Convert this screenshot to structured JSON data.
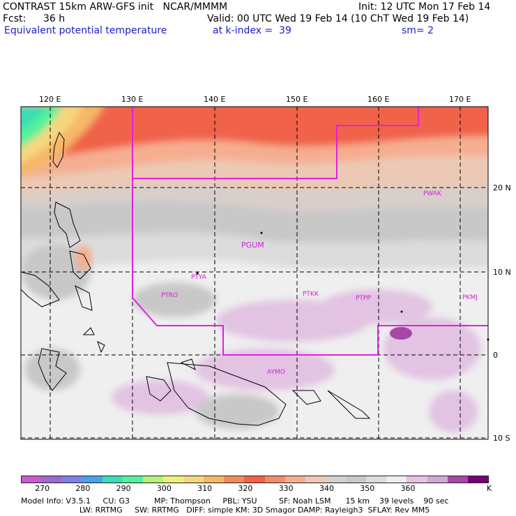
{
  "header": {
    "line1_left": "CONTRAST 15km ARW-GFS init   NCAR/MMMM",
    "init": "Init: 12 UTC Mon 17 Feb 14",
    "fcst_label": "Fcst:",
    "fcst_value": "36 h",
    "valid": "Valid: 00 UTC Wed 19 Feb 14 (10 ChT Wed 19 Feb 14)",
    "field": "Equivalent potential temperature",
    "level": "at k-index =  39",
    "smoothing": "sm= 2"
  },
  "map": {
    "lon_labels": [
      "120 E",
      "130 E",
      "140 E",
      "150 E",
      "160 E",
      "170 E"
    ],
    "lat_labels": [
      "20 N",
      "10 N",
      "0",
      "10 S"
    ],
    "stations": [
      "PWAK",
      "PGUM",
      "PTYA",
      "PTRO",
      "PTKK",
      "PTPP",
      "PKMJ",
      "AYMO"
    ]
  },
  "colorbar": {
    "unit": "K",
    "ticks": [
      "270",
      "280",
      "290",
      "300",
      "310",
      "320",
      "330",
      "340",
      "350",
      "360"
    ],
    "colors": [
      "#cc5bcc",
      "#9a6ad0",
      "#7f7ee6",
      "#4c9fe8",
      "#3cdcb4",
      "#55f09a",
      "#b4f07a",
      "#f0f078",
      "#f5d780",
      "#f5b867",
      "#f28a56",
      "#f0624a",
      "#f28b6c",
      "#f5ae90",
      "#ecc9b4",
      "#d8cfca",
      "#c8c8c8",
      "#dcdcdc",
      "#efefef",
      "#e2c3e2",
      "#d2a6d8",
      "#a648a6",
      "#780078"
    ]
  },
  "model_info": {
    "line1": "Model Info: V3.5.1     CU: G3          MP: Thompson     PBL: YSU         SF: Noah LSM      15 km    39 levels    90 sec",
    "line2": "                        LW: RRTMG     SW: RRTMG   DIFF: simple KM: 3D Smagor DAMP: Rayleigh3  SFLAY: Rev MM5"
  }
}
